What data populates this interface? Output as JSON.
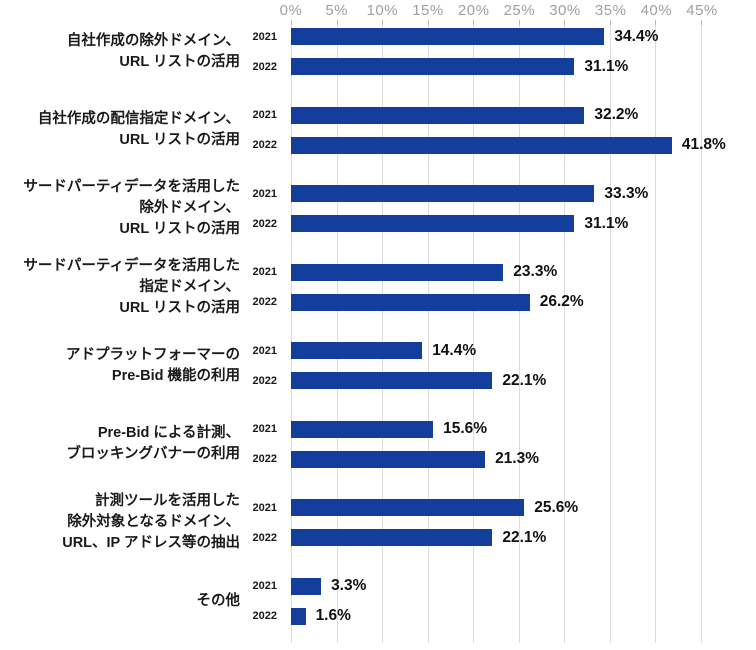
{
  "chart_data": {
    "type": "bar",
    "orientation": "horizontal",
    "title": "",
    "xlabel": "",
    "ylabel": "",
    "xlim": [
      0,
      45
    ],
    "x_ticks": [
      "0%",
      "5%",
      "10%",
      "15%",
      "20%",
      "25%",
      "30%",
      "35%",
      "40%",
      "45%"
    ],
    "grid": true,
    "legend_position": "none",
    "categories": [
      "自社作成の除外ドメイン、URL リストの活用",
      "自社作成の配信指定ドメイン、URL リストの活用",
      "サードパーティデータを活用した除外ドメイン、URL リストの活用",
      "サードパーティデータを活用した指定ドメイン、URL リストの活用",
      "アドプラットフォーマーの Pre-Bid 機能の利用",
      "Pre-Bid による計測、ブロッキングバナーの利用",
      "計測ツールを活用した除外対象となるドメイン、URL、IP アドレス等の抽出",
      "その他"
    ],
    "category_label_lines": [
      [
        "自社作成の除外ドメイン、",
        "URL リストの活用"
      ],
      [
        "自社作成の配信指定ドメイン、",
        "URL リストの活用"
      ],
      [
        "サードパーティデータを活用した",
        "除外ドメイン、",
        "URL リストの活用"
      ],
      [
        "サードパーティデータを活用した",
        "指定ドメイン、",
        "URL リストの活用"
      ],
      [
        "アドプラットフォーマーの",
        "Pre-Bid 機能の利用"
      ],
      [
        "Pre-Bid による計測、",
        "ブロッキングバナーの利用"
      ],
      [
        "計測ツールを活用した",
        "除外対象となるドメイン、",
        "URL、IP アドレス等の抽出"
      ],
      [
        "その他"
      ]
    ],
    "series": [
      {
        "name": "2021",
        "values": [
          34.4,
          32.2,
          33.3,
          23.3,
          14.4,
          15.6,
          25.6,
          3.3
        ],
        "value_labels": [
          "34.4%",
          "32.2%",
          "33.3%",
          "23.3%",
          "14.4%",
          "15.6%",
          "25.6%",
          "3.3%"
        ]
      },
      {
        "name": "2022",
        "values": [
          31.1,
          41.8,
          31.1,
          26.2,
          22.1,
          21.3,
          22.1,
          1.6
        ],
        "value_labels": [
          "31.1%",
          "41.8%",
          "31.1%",
          "26.2%",
          "22.1%",
          "21.3%",
          "22.1%",
          "1.6%"
        ]
      }
    ]
  },
  "colors": {
    "bar": "#133e9b",
    "axis_text": "#a0a0a0",
    "gridline": "#dcdcdc",
    "tick_mark": "#b5b5b5",
    "category_text": "#1a1a1a",
    "year_text": "#1a1a1a",
    "value_text": "#111111",
    "background": "#ffffff"
  }
}
